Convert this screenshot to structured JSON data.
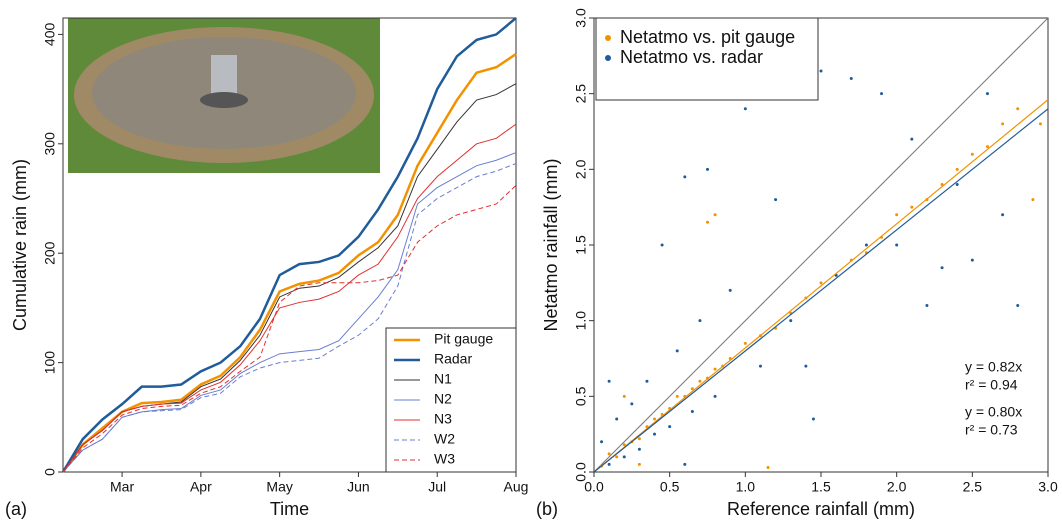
{
  "chart_data": [
    {
      "type": "line",
      "panel_label": "(a)",
      "x_label": "Time",
      "y_label": "Cumulative rain (mm)",
      "categories": [
        null,
        null,
        null,
        "Mar",
        null,
        null,
        null,
        "Apr",
        null,
        null,
        null,
        "May",
        null,
        null,
        null,
        "Jun",
        null,
        null,
        null,
        "Jul",
        null,
        null,
        null,
        "Aug"
      ],
      "ylim": [
        0,
        415
      ],
      "yticks": [
        0,
        100,
        200,
        300,
        400
      ],
      "legend": "bottom-right",
      "series": [
        {
          "name": "Pit gauge",
          "color": "#f39200",
          "width": 2.5,
          "dashed": false,
          "values": [
            0,
            25,
            40,
            55,
            63,
            64,
            66,
            80,
            88,
            105,
            130,
            165,
            172,
            175,
            182,
            198,
            210,
            235,
            280,
            310,
            340,
            365,
            370,
            382
          ]
        },
        {
          "name": "Radar",
          "color": "#1f5c99",
          "width": 2.5,
          "dashed": false,
          "values": [
            0,
            30,
            48,
            62,
            78,
            78,
            80,
            92,
            100,
            115,
            140,
            180,
            190,
            192,
            198,
            215,
            240,
            270,
            305,
            350,
            380,
            395,
            400,
            415
          ]
        },
        {
          "name": "N1",
          "color": "#333333",
          "width": 1,
          "dashed": false,
          "values": [
            0,
            25,
            38,
            55,
            60,
            62,
            64,
            78,
            85,
            102,
            125,
            160,
            168,
            170,
            178,
            192,
            205,
            225,
            270,
            295,
            320,
            340,
            345,
            355
          ]
        },
        {
          "name": "N2",
          "color": "#6a7fd0",
          "width": 1,
          "dashed": false,
          "values": [
            0,
            20,
            30,
            50,
            55,
            57,
            58,
            70,
            75,
            90,
            100,
            108,
            110,
            112,
            120,
            140,
            160,
            185,
            245,
            260,
            270,
            280,
            285,
            292
          ]
        },
        {
          "name": "N3",
          "color": "#e0302f",
          "width": 1,
          "dashed": false,
          "values": [
            0,
            25,
            38,
            55,
            60,
            62,
            63,
            75,
            82,
            98,
            120,
            150,
            155,
            158,
            165,
            180,
            190,
            215,
            250,
            270,
            285,
            300,
            305,
            318
          ]
        },
        {
          "name": "W2",
          "color": "#6a7fd0",
          "width": 1,
          "dashed": true,
          "values": [
            0,
            20,
            30,
            50,
            55,
            56,
            57,
            68,
            72,
            87,
            95,
            100,
            102,
            104,
            115,
            125,
            140,
            170,
            235,
            250,
            260,
            270,
            275,
            282
          ]
        },
        {
          "name": "W3",
          "color": "#e0302f",
          "width": 1,
          "dashed": true,
          "values": [
            0,
            22,
            35,
            52,
            58,
            60,
            61,
            72,
            78,
            92,
            105,
            155,
            170,
            173,
            173,
            173,
            175,
            180,
            210,
            225,
            235,
            240,
            245,
            262
          ]
        }
      ]
    },
    {
      "type": "scatter",
      "panel_label": "(b)",
      "x_label": "Reference rainfall (mm)",
      "y_label": "Netatmo rainfall (mm)",
      "xlim": [
        0,
        3
      ],
      "ylim": [
        0,
        3
      ],
      "xticks": [
        {
          "value": 0,
          "label": "0.0"
        },
        0.5,
        {
          "value": 1,
          "label": "1.0"
        },
        1.5,
        {
          "value": 2,
          "label": "2.0"
        },
        2.5,
        {
          "value": 3,
          "label": "3.0"
        }
      ],
      "yticks": [
        {
          "value": 0,
          "label": "0.0"
        },
        0.5,
        {
          "value": 1,
          "label": "1.0"
        },
        1.5,
        {
          "value": 2,
          "label": "2.0"
        },
        2.5,
        {
          "value": 3,
          "label": "3.0"
        }
      ],
      "legend": "top-left",
      "series": [
        {
          "name": "Netatmo vs. pit gauge",
          "color": "#f39200",
          "slope": 0.82,
          "fit_label": "y = 0.82x",
          "r2_label": "r² = 0.94",
          "x": [
            0.05,
            0.1,
            0.15,
            0.2,
            0.25,
            0.3,
            0.35,
            0.4,
            0.45,
            0.5,
            0.55,
            0.6,
            0.65,
            0.7,
            0.75,
            0.8,
            0.85,
            0.9,
            1.0,
            1.1,
            1.2,
            1.3,
            1.4,
            1.5,
            1.6,
            1.7,
            1.8,
            1.9,
            2.0,
            2.1,
            2.2,
            2.3,
            2.4,
            2.5,
            2.6,
            2.7,
            2.8,
            2.9,
            0.75,
            0.8,
            2.95,
            1.15,
            0.2,
            0.3
          ],
          "y": [
            0.04,
            0.12,
            0.1,
            0.18,
            0.2,
            0.22,
            0.3,
            0.35,
            0.38,
            0.42,
            0.5,
            0.5,
            0.55,
            0.6,
            0.62,
            0.68,
            0.7,
            0.75,
            0.85,
            0.9,
            0.95,
            1.05,
            1.15,
            1.25,
            1.3,
            1.4,
            1.45,
            1.55,
            1.7,
            1.75,
            1.8,
            1.9,
            2.0,
            2.1,
            2.15,
            2.3,
            2.4,
            1.8,
            1.65,
            1.7,
            2.3,
            0.03,
            0.5,
            0.05
          ]
        },
        {
          "name": "Netatmo vs. radar",
          "color": "#1f5c99",
          "slope": 0.8,
          "fit_label": "y = 0.80x",
          "r2_label": "r² = 0.73",
          "x": [
            0.05,
            0.1,
            0.15,
            0.2,
            0.25,
            0.3,
            0.35,
            0.4,
            0.45,
            0.5,
            0.55,
            0.6,
            0.65,
            0.7,
            0.75,
            0.8,
            0.9,
            1.0,
            1.1,
            1.2,
            1.3,
            1.4,
            1.5,
            1.6,
            1.7,
            1.8,
            1.9,
            2.0,
            2.1,
            2.2,
            2.3,
            2.4,
            2.5,
            2.6,
            2.7,
            2.8,
            0.45,
            1.45,
            0.6,
            0.1
          ],
          "y": [
            0.2,
            0.05,
            0.35,
            0.1,
            0.45,
            0.15,
            0.6,
            0.25,
            1.5,
            0.3,
            0.8,
            1.95,
            0.4,
            1.0,
            2.0,
            0.5,
            1.2,
            2.4,
            0.7,
            1.8,
            1.0,
            0.7,
            2.65,
            1.3,
            2.6,
            1.5,
            2.5,
            1.5,
            2.2,
            1.1,
            1.35,
            1.9,
            1.4,
            2.5,
            1.7,
            1.1,
            2.47,
            0.35,
            0.05,
            0.6
          ]
        }
      ]
    }
  ]
}
